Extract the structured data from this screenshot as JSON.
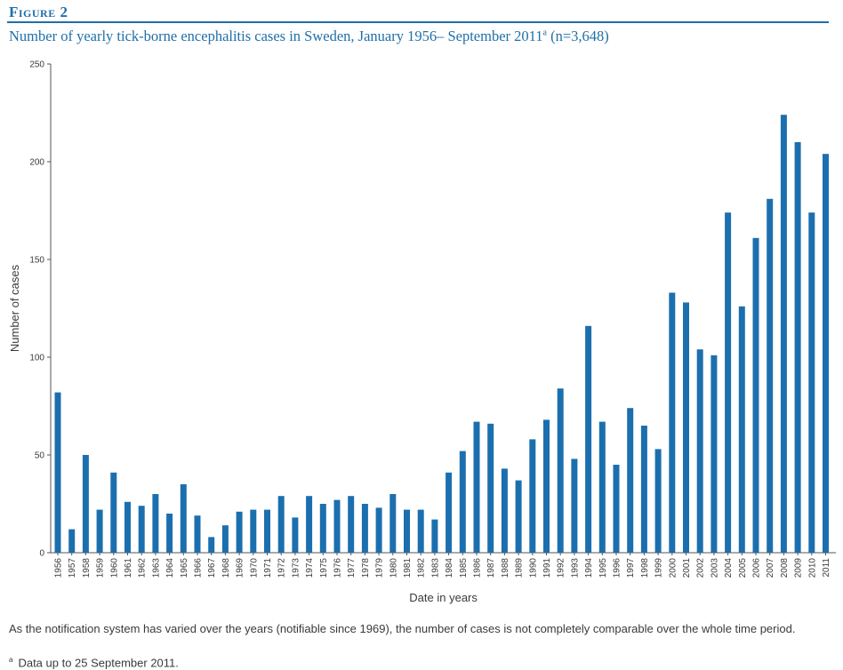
{
  "figure_label": "Figure 2",
  "title_main": "Number of yearly tick-borne encephalitis cases in Sweden, January 1956– September 2011",
  "title_sup": "a",
  "title_tail": " (n=3,648)",
  "note": "As the notification system has varied over the years (notifiable since 1969), the number of cases is not completely comparable over the whole time period.",
  "footnote_marker": "a",
  "footnote_text": "Data up to 25 September 2011.",
  "colors": {
    "bar": "#1c6fae",
    "accent": "#1f6fa8",
    "axis": "#555555"
  },
  "chart_data": {
    "type": "bar",
    "xlabel": "Date in years",
    "ylabel": "Number of cases",
    "ylim": [
      0,
      250
    ],
    "yticks": [
      0,
      50,
      100,
      150,
      200,
      250
    ],
    "grid": false,
    "categories": [
      "1956",
      "1957",
      "1958",
      "1959",
      "1960",
      "1961",
      "1962",
      "1963",
      "1964",
      "1965",
      "1966",
      "1967",
      "1968",
      "1969",
      "1970",
      "1971",
      "1972",
      "1973",
      "1974",
      "1975",
      "1976",
      "1977",
      "1978",
      "1979",
      "1980",
      "1981",
      "1982",
      "1983",
      "1984",
      "1985",
      "1986",
      "1987",
      "1988",
      "1989",
      "1990",
      "1991",
      "1992",
      "1993",
      "1994",
      "1995",
      "1996",
      "1997",
      "1998",
      "1999",
      "2000",
      "2001",
      "2002",
      "2003",
      "2004",
      "2005",
      "2006",
      "2007",
      "2008",
      "2009",
      "2010",
      "2011"
    ],
    "values": [
      82,
      12,
      50,
      22,
      41,
      26,
      24,
      30,
      20,
      35,
      19,
      8,
      14,
      21,
      22,
      22,
      29,
      18,
      29,
      25,
      27,
      29,
      25,
      23,
      30,
      22,
      22,
      17,
      41,
      52,
      67,
      66,
      43,
      37,
      58,
      68,
      84,
      48,
      116,
      67,
      45,
      74,
      65,
      53,
      133,
      128,
      104,
      101,
      174,
      126,
      161,
      181,
      224,
      210,
      174,
      204
    ]
  }
}
